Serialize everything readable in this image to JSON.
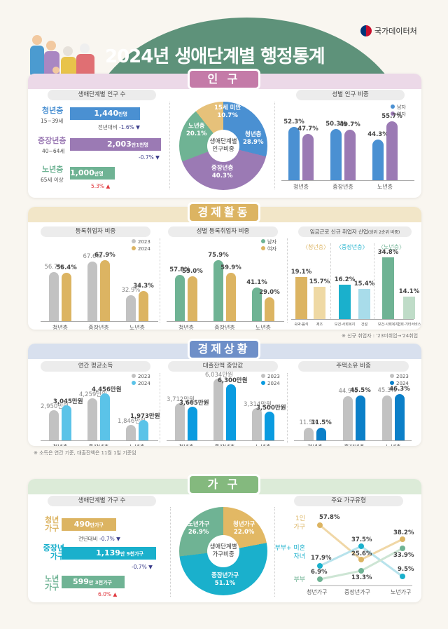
{
  "header": {
    "title": "2024년 생애단계별 행정통계",
    "agency": "국가데이터처"
  },
  "colors": {
    "population": "#c47ba8",
    "economic_activity": "#dcb462",
    "economic_status": "#6e8fc8",
    "household": "#84b97e",
    "youth_blue": "#4a90d2",
    "middle_purple": "#9b7ab4",
    "senior_green": "#6fb394",
    "gray": "#c2c2c2"
  },
  "sections": {
    "population": {
      "label": "인 구",
      "count": {
        "title": "생애단계별 인구 수",
        "rows": [
          {
            "group": "청년층",
            "ages": "15~39세",
            "value": "1,440",
            "unit": "만명",
            "change_prefix": "전년대비",
            "change": "-1.6%"
          },
          {
            "group": "중장년층",
            "ages": "40~64세",
            "value": "2,003",
            "unit": "만1천명",
            "change": "-0.7%"
          },
          {
            "group": "노년층",
            "ages": "65세 이상",
            "value": "1,000",
            "unit": "만명",
            "change": "5.3%"
          }
        ]
      },
      "share": {
        "center": "생애단계별 인구비중",
        "slices": [
          {
            "label": "15세 미만",
            "value": "10.7%"
          },
          {
            "label": "청년층",
            "value": "28.9%"
          },
          {
            "label": "중장년층",
            "value": "40.3%"
          },
          {
            "label": "노년층",
            "value": "20.1%"
          }
        ]
      },
      "gender": {
        "title": "성별 인구 비중",
        "legend": [
          "남자",
          "여자"
        ]
      }
    },
    "economic_activity": {
      "label": "경제활동",
      "employed": {
        "title": "등록취업자 비중",
        "legend": [
          "2023",
          "2024"
        ]
      },
      "gender_employed": {
        "title": "성별 등록취업자 비중",
        "legend": [
          "남자",
          "여자"
        ]
      },
      "industry": {
        "title": "임금근로 신규 취업자 산업",
        "title_sub": "(상위 2순위 비중)",
        "groups": [
          "〈청년층〉",
          "〈중장년층〉",
          "〈노년층〉"
        ],
        "bars": [
          {
            "label": "숙박·음식",
            "value": "19.1%"
          },
          {
            "label": "제조",
            "value": "15.7%"
          },
          {
            "label": "보건·사회복지",
            "value": "16.2%"
          },
          {
            "label": "건설",
            "value": "15.4%"
          },
          {
            "label": "보건·사회복지",
            "value": "34.8%"
          },
          {
            "label": "협회·기타서비스",
            "value": "14.1%"
          }
        ],
        "note": "※ 신규 취업자 : '23미취업→'24취업"
      }
    },
    "economic_status": {
      "label": "경제상황",
      "income": {
        "title": "연간 평균소득",
        "legend": [
          "2023",
          "2024"
        ]
      },
      "loan": {
        "title": "대출잔액 중앙값",
        "legend": [
          "2023",
          "2024"
        ]
      },
      "housing": {
        "title": "주택소유 비중",
        "legend": [
          "2023",
          "2024"
        ]
      },
      "note": "※ 소득은 연간 기준, 대출잔액은 11월 1일 기준임"
    },
    "household": {
      "label": "가 구",
      "count": {
        "title": "생애단계별 가구 수",
        "rows": [
          {
            "group": "청년 가구",
            "value": "490",
            "unit": "만가구",
            "change_prefix": "전년대비",
            "change": "-0.7%"
          },
          {
            "group": "중장년 가구",
            "value": "1,139",
            "unit": "만 9천가구",
            "change": "-0.7%"
          },
          {
            "group": "노년 가구",
            "value": "599",
            "unit": "만 3천가구",
            "change": "6.0%"
          }
        ]
      },
      "share": {
        "center": "생애단계별 가구비중",
        "slices": [
          {
            "label": "청년가구",
            "value": "22.0%"
          },
          {
            "label": "중장년가구",
            "value": "51.1%"
          },
          {
            "label": "노년가구",
            "value": "26.9%"
          }
        ]
      },
      "types": {
        "title": "주요 가구유형",
        "series_labels": [
          "1인 가구",
          "부부+ 미혼자녀",
          "부부"
        ]
      }
    }
  },
  "chart_data": [
    {
      "type": "bar",
      "title": "생애단계별 인구 수",
      "categories": [
        "청년층",
        "중장년층",
        "노년층"
      ],
      "values": [
        1440,
        2003.1,
        1000
      ],
      "unit": "만명",
      "changes": [
        "-1.6%",
        "-0.7%",
        "5.3%"
      ]
    },
    {
      "type": "pie",
      "title": "생애단계별 인구비중",
      "categories": [
        "15세 미만",
        "청년층",
        "중장년층",
        "노년층"
      ],
      "values": [
        10.7,
        28.9,
        40.3,
        20.1
      ]
    },
    {
      "type": "bar",
      "title": "성별 인구 비중",
      "categories": [
        "청년층",
        "중장년층",
        "노년층"
      ],
      "series": [
        {
          "name": "남자",
          "values": [
            52.3,
            50.3,
            44.3
          ]
        },
        {
          "name": "여자",
          "values": [
            47.7,
            49.7,
            55.7
          ]
        }
      ],
      "unit": "%"
    },
    {
      "type": "bar",
      "title": "등록취업자 비중",
      "categories": [
        "청년층",
        "중장년층",
        "노년층"
      ],
      "series": [
        {
          "name": "2023",
          "values": [
            56.7,
            67.6,
            32.9
          ]
        },
        {
          "name": "2024",
          "values": [
            56.4,
            67.9,
            34.3
          ]
        }
      ],
      "unit": "%"
    },
    {
      "type": "bar",
      "title": "성별 등록취업자 비중",
      "categories": [
        "청년층",
        "중장년층",
        "노년층"
      ],
      "series": [
        {
          "name": "남자",
          "values": [
            57.8,
            75.9,
            41.1
          ]
        },
        {
          "name": "여자",
          "values": [
            55.0,
            59.9,
            29.0
          ]
        }
      ],
      "unit": "%"
    },
    {
      "type": "bar",
      "title": "임금근로 신규 취업자 산업(상위 2순위 비중)",
      "categories": [
        "청년층-숙박·음식",
        "청년층-제조",
        "중장년층-보건·사회복지",
        "중장년층-건설",
        "노년층-보건·사회복지",
        "노년층-협회·기타서비스"
      ],
      "values": [
        19.1,
        15.7,
        16.2,
        15.4,
        34.8,
        14.1
      ],
      "unit": "%"
    },
    {
      "type": "bar",
      "title": "연간 평균소득",
      "categories": [
        "청년층",
        "중장년층",
        "노년층"
      ],
      "series": [
        {
          "name": "2023",
          "values": [
            2950,
            4259,
            1846
          ]
        },
        {
          "name": "2024",
          "values": [
            3045,
            4456,
            1973
          ]
        }
      ],
      "unit": "만원"
    },
    {
      "type": "bar",
      "title": "대출잔액 중앙값",
      "categories": [
        "청년층",
        "중장년층",
        "노년층"
      ],
      "series": [
        {
          "name": "2023",
          "values": [
            3712,
            6034,
            3314
          ]
        },
        {
          "name": "2024",
          "values": [
            3665,
            6300,
            3500
          ]
        }
      ],
      "unit": "만원"
    },
    {
      "type": "bar",
      "title": "주택소유 비중",
      "categories": [
        "청년층",
        "중장년층",
        "노년층"
      ],
      "series": [
        {
          "name": "2023",
          "values": [
            11.5,
            44.9,
            45.3
          ]
        },
        {
          "name": "2024",
          "values": [
            11.5,
            45.5,
            46.3
          ]
        }
      ],
      "unit": "%"
    },
    {
      "type": "bar",
      "title": "생애단계별 가구 수",
      "categories": [
        "청년가구",
        "중장년가구",
        "노년가구"
      ],
      "values": [
        490,
        1139.9,
        599.3
      ],
      "unit": "만가구",
      "changes": [
        "-0.7%",
        "-0.7%",
        "6.0%"
      ]
    },
    {
      "type": "pie",
      "title": "생애단계별 가구비중",
      "categories": [
        "청년가구",
        "중장년가구",
        "노년가구"
      ],
      "values": [
        22.0,
        51.1,
        26.9
      ]
    },
    {
      "type": "line",
      "title": "주요 가구유형",
      "x": [
        "청년가구",
        "중장년가구",
        "노년가구"
      ],
      "series": [
        {
          "name": "1인 가구",
          "values": [
            57.8,
            25.6,
            38.2
          ]
        },
        {
          "name": "부부+미혼자녀",
          "values": [
            17.9,
            37.5,
            9.5
          ]
        },
        {
          "name": "부부",
          "values": [
            6.9,
            13.3,
            33.9
          ]
        }
      ],
      "unit": "%"
    }
  ],
  "render": {
    "pop_gender": [
      {
        "cat": "청년층",
        "m": "52.3%",
        "f": "47.7%",
        "mh": 52,
        "fh": 47
      },
      {
        "cat": "중장년층",
        "m": "50.3%",
        "f": "49.7%",
        "mh": 50,
        "fh": 49
      },
      {
        "cat": "노년층",
        "m": "44.3%",
        "f": "55.7%",
        "mh": 44,
        "fh": 56
      }
    ],
    "employed": [
      {
        "cat": "청년층",
        "a": "56.7%",
        "b": "56.4%"
      },
      {
        "cat": "중장년층",
        "a": "67.6%",
        "b": "67.9%"
      },
      {
        "cat": "노년층",
        "a": "32.9%",
        "b": "34.3%"
      }
    ],
    "gender_employed": [
      {
        "cat": "청년층",
        "a": "57.8%",
        "b": "55.0%"
      },
      {
        "cat": "중장년층",
        "a": "75.9%",
        "b": "59.9%"
      },
      {
        "cat": "노년층",
        "a": "41.1%",
        "b": "29.0%"
      }
    ],
    "income": [
      {
        "cat": "청년층",
        "a": "2,950만원",
        "b": "3,045만원"
      },
      {
        "cat": "중장년층",
        "a": "4,259만원",
        "b": "4,456만원"
      },
      {
        "cat": "노년층",
        "a": "1,846만원",
        "b": "1,973만원"
      }
    ],
    "loan": [
      {
        "cat": "청년층",
        "a": "3,712만원",
        "b": "3,665만원"
      },
      {
        "cat": "중장년층",
        "a": "6,034만원",
        "b": "6,300만원"
      },
      {
        "cat": "노년층",
        "a": "3,314만원",
        "b": "3,500만원"
      }
    ],
    "housing": [
      {
        "cat": "청년층",
        "a": "11.5%",
        "b": "11.5%"
      },
      {
        "cat": "중장년층",
        "a": "44.9%",
        "b": "45.5%"
      },
      {
        "cat": "노년층",
        "a": "45.3%",
        "b": "46.3%"
      }
    ],
    "hh_types_x": [
      "청년가구",
      "중장년가구",
      "노년가구"
    ],
    "hh_types_vals": {
      "one": [
        "57.8%",
        "25.6%",
        "38.2%"
      ],
      "couple_kids": [
        "17.9%",
        "37.5%",
        "9.5%"
      ],
      "couple": [
        "6.9%",
        "13.3%",
        "33.9%"
      ]
    }
  }
}
